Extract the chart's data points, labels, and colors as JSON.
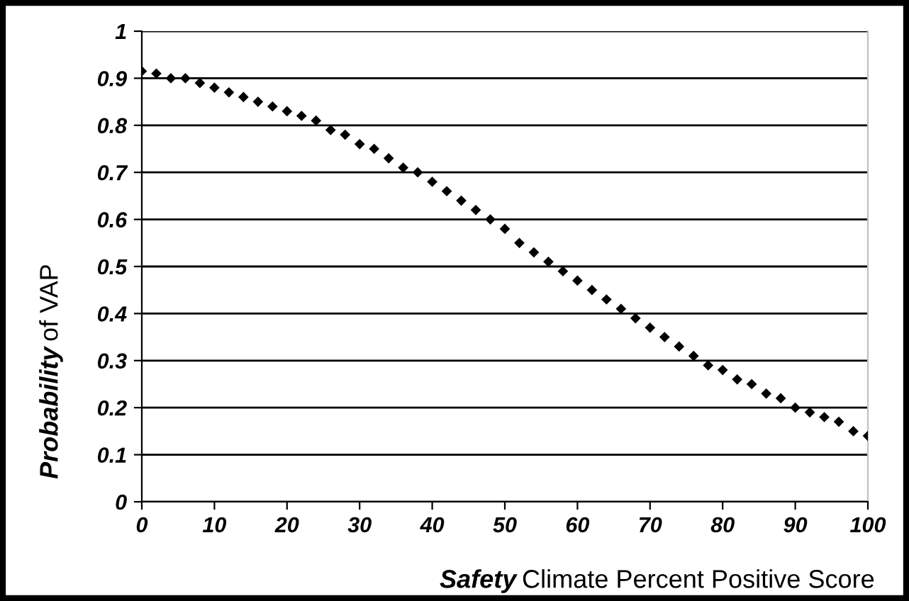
{
  "chart_data": {
    "type": "scatter",
    "xlabel": "Safety Climate Percent Positive Score",
    "ylabel": "Probability of VAP",
    "x": [
      0,
      2,
      4,
      6,
      8,
      10,
      12,
      14,
      16,
      18,
      20,
      22,
      24,
      26,
      28,
      30,
      32,
      34,
      36,
      38,
      40,
      42,
      44,
      46,
      48,
      50,
      52,
      54,
      56,
      58,
      60,
      62,
      64,
      66,
      68,
      70,
      72,
      74,
      76,
      78,
      80,
      82,
      84,
      86,
      88,
      90,
      92,
      94,
      96,
      98,
      100
    ],
    "series": [
      {
        "color": "#000000",
        "values": [
          0.915,
          0.91,
          0.9,
          0.9,
          0.89,
          0.88,
          0.87,
          0.86,
          0.85,
          0.84,
          0.83,
          0.82,
          0.81,
          0.79,
          0.78,
          0.76,
          0.75,
          0.73,
          0.71,
          0.7,
          0.68,
          0.66,
          0.64,
          0.62,
          0.6,
          0.58,
          0.55,
          0.53,
          0.51,
          0.49,
          0.47,
          0.45,
          0.43,
          0.41,
          0.39,
          0.37,
          0.35,
          0.33,
          0.31,
          0.29,
          0.28,
          0.26,
          0.25,
          0.23,
          0.22,
          0.2,
          0.19,
          0.18,
          0.17,
          0.15,
          0.14
        ]
      }
    ],
    "marker": "diamond",
    "xlim": [
      0,
      100
    ],
    "xticks": [
      0,
      10,
      20,
      30,
      40,
      50,
      60,
      70,
      80,
      90,
      100
    ],
    "ylim": [
      0,
      1
    ],
    "yticks": [
      0,
      0.1,
      0.2,
      0.3,
      0.4,
      0.5,
      0.6,
      0.7,
      0.8,
      0.9,
      1
    ],
    "grid": "y",
    "legend": false
  }
}
